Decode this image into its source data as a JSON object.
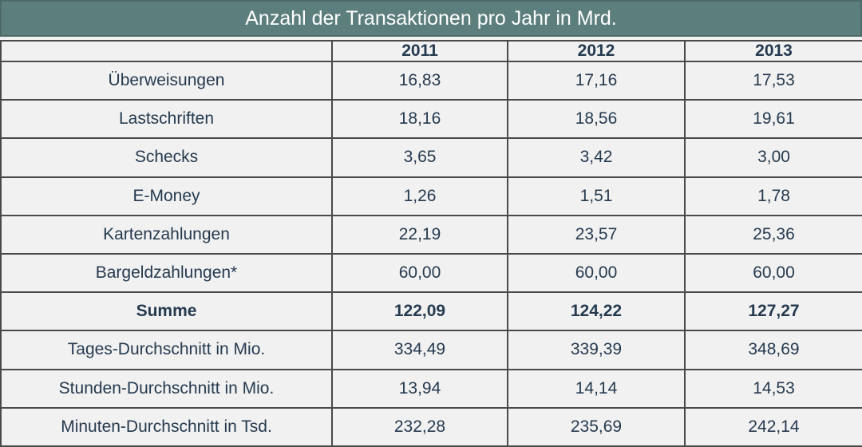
{
  "chart_data": {
    "type": "table",
    "title": "Anzahl der Transaktionen pro Jahr in Mrd.",
    "columns": [
      "",
      "2011",
      "2012",
      "2013"
    ],
    "rows": [
      {
        "label": "Überweisungen",
        "values": [
          "16,83",
          "17,16",
          "17,53"
        ],
        "bold": false
      },
      {
        "label": "Lastschriften",
        "values": [
          "18,16",
          "18,56",
          "19,61"
        ],
        "bold": false
      },
      {
        "label": "Schecks",
        "values": [
          "3,65",
          "3,42",
          "3,00"
        ],
        "bold": false
      },
      {
        "label": "E-Money",
        "values": [
          "1,26",
          "1,51",
          "1,78"
        ],
        "bold": false
      },
      {
        "label": "Kartenzahlungen",
        "values": [
          "22,19",
          "23,57",
          "25,36"
        ],
        "bold": false
      },
      {
        "label": "Bargeldzahlungen*",
        "values": [
          "60,00",
          "60,00",
          "60,00"
        ],
        "bold": false
      },
      {
        "label": "Summe",
        "values": [
          "122,09",
          "124,22",
          "127,27"
        ],
        "bold": true
      },
      {
        "label": "Tages-Durchschnitt in Mio.",
        "values": [
          "334,49",
          "339,39",
          "348,69"
        ],
        "bold": false
      },
      {
        "label": "Stunden-Durchschnitt in Mio.",
        "values": [
          "13,94",
          "14,14",
          "14,53"
        ],
        "bold": false
      },
      {
        "label": "Minuten-Durchschnitt in Tsd.",
        "values": [
          "232,28",
          "235,69",
          "242,14"
        ],
        "bold": false
      }
    ]
  },
  "colors": {
    "title_bar_bg": "#5c7f7d",
    "title_text": "#ffffff",
    "cell_bg": "#f1f1f1",
    "cell_text": "#253a4f",
    "border": "#4a4a4a"
  }
}
